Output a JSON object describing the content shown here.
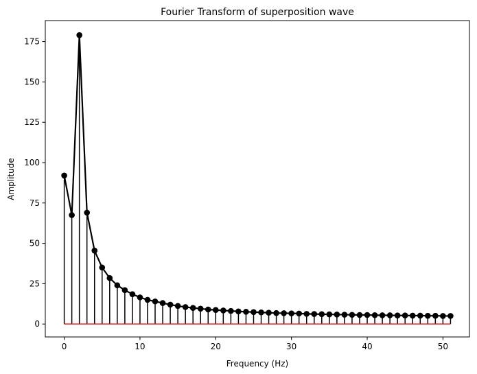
{
  "chart_data": {
    "type": "stem",
    "title": "Fourier Transform of superposition wave",
    "xlabel": "Frequency (Hz)",
    "ylabel": "Amplitude",
    "xlim": [
      -2.5,
      53.5
    ],
    "ylim": [
      -8,
      188
    ],
    "xticks": [
      0,
      10,
      20,
      30,
      40,
      50
    ],
    "xtick_labels": [
      "0",
      "10",
      "20",
      "30",
      "40",
      "50"
    ],
    "yticks": [
      0,
      25,
      50,
      75,
      100,
      125,
      150,
      175
    ],
    "ytick_labels": [
      "0",
      "25",
      "50",
      "75",
      "100",
      "125",
      "150",
      "175"
    ],
    "x": [
      0,
      1,
      2,
      3,
      4,
      5,
      6,
      7,
      8,
      9,
      10,
      11,
      12,
      13,
      14,
      15,
      16,
      17,
      18,
      19,
      20,
      21,
      22,
      23,
      24,
      25,
      26,
      27,
      28,
      29,
      30,
      31,
      32,
      33,
      34,
      35,
      36,
      37,
      38,
      39,
      40,
      41,
      42,
      43,
      44,
      45,
      46,
      47,
      48,
      49,
      50,
      51
    ],
    "values": [
      92,
      67.5,
      179,
      69,
      45.5,
      35,
      28.5,
      24,
      21,
      18.5,
      16.5,
      15,
      14,
      13,
      12,
      11.2,
      10.5,
      10,
      9.5,
      9,
      8.7,
      8.4,
      8.1,
      7.8,
      7.6,
      7.4,
      7.2,
      7.0,
      6.8,
      6.7,
      6.6,
      6.5,
      6.3,
      6.2,
      6.1,
      6.0,
      5.9,
      5.8,
      5.7,
      5.6,
      5.6,
      5.5,
      5.4,
      5.4,
      5.3,
      5.3,
      5.2,
      5.2,
      5.1,
      5.1,
      5.0,
      5.0
    ],
    "colors": {
      "stem": "#000000",
      "marker": "#000000",
      "line": "#000000",
      "baseline": "#d62728"
    }
  }
}
